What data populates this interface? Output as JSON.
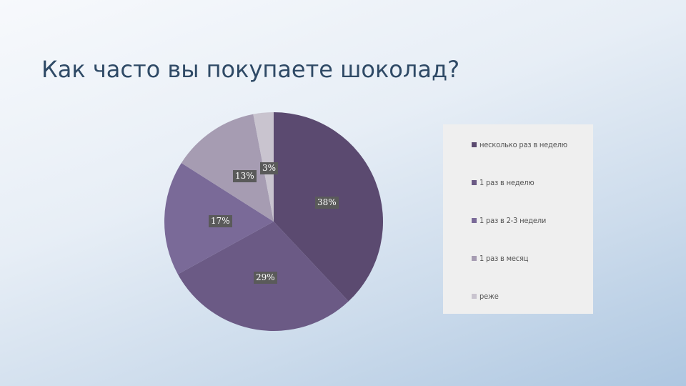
{
  "slide": {
    "title": "Как часто вы покупаете шоколад?"
  },
  "chart_data": {
    "type": "pie",
    "categories": [
      "несколько раз в неделю",
      "1 раз в неделю",
      "1 раз в 2-3 недели",
      "1 раз в месяц",
      "реже"
    ],
    "values": [
      38,
      29,
      17,
      13,
      3
    ],
    "data_labels": [
      "38%",
      "29%",
      "17%",
      "13%",
      "3%"
    ],
    "colors": [
      "#5b4a70",
      "#6b5a85",
      "#7a6a98",
      "#a69cb2",
      "#c9c4cf"
    ],
    "legend_position": "right",
    "title": ""
  }
}
